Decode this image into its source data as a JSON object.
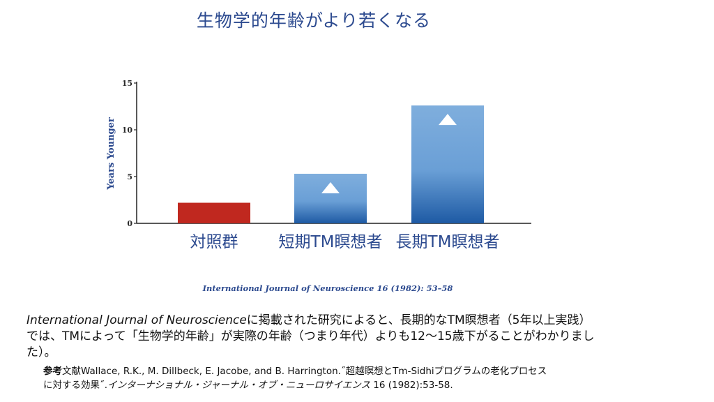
{
  "slide": {
    "title": "生物学的年齢がより若くなる",
    "citation": "International Journal of Neuroscience 16 (1982): 53–58",
    "body": {
      "journal": "International Journal of Neuroscience",
      "line1_rest": "に掲載された研究によると、長期的なTM瞑想者（5年以上実践）",
      "line2": "では、TMによって「生物学的年齢」が実際の年齢（つまり年代）よりも12〜15歳下がることがわかりまし",
      "line3": "た）。"
    },
    "reference": {
      "head": "参考",
      "part1": "文献Wallace, R.K., M. Dillbeck, E. Jacobe, and B. Harrington.˝超越瞑想とTm-Sidhiプログラムの老化プロセス",
      "part2": "に対する効果˝.",
      "part3_italic": "インターナショナル・ジャーナル・オブ・ニューロサイエンス",
      "part4": " 16 (1982):53-58."
    }
  },
  "chart_data": {
    "type": "bar",
    "categories": [
      "対照群",
      "短期TM瞑想者",
      "長期TM瞑想者"
    ],
    "values": [
      2.2,
      5.3,
      12.6
    ],
    "ylabel": "Years Younger",
    "ylim": [
      0,
      15
    ],
    "yticks": [
      "0",
      "5",
      "10",
      "15"
    ],
    "significance_marker": [
      false,
      true,
      true
    ],
    "grid": false,
    "colors": {
      "control": "#c0281f",
      "tm_top": "#7faedd",
      "tm_bottom": "#1e5aa4",
      "axis_label": "#2c4a8f",
      "category_label": "#2c4a8f",
      "marker": "#ffffff"
    }
  }
}
